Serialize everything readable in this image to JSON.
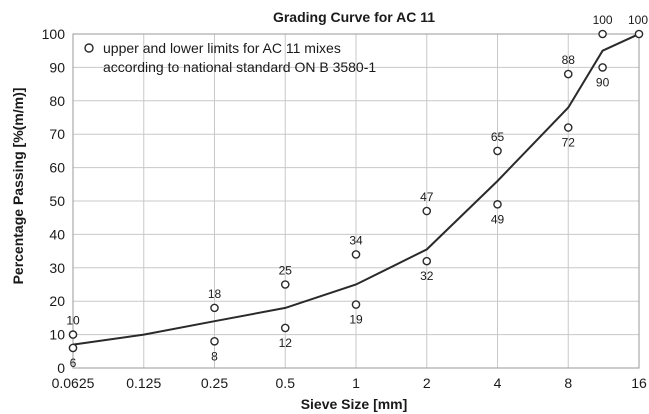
{
  "chart_data": {
    "type": "line",
    "title": "Grading Curve for AC 11",
    "xlabel": "Sieve Size [mm]",
    "ylabel": "Percentage Passing [%(m/m)]",
    "x_scale": "log2",
    "x_ticks": [
      0.0625,
      0.125,
      0.25,
      0.5,
      1,
      2,
      4,
      8,
      16
    ],
    "x_tick_labels": [
      "0.0625",
      "0.125",
      "0.25",
      "0.5",
      "1",
      "2",
      "4",
      "8",
      "16"
    ],
    "ylim": [
      0,
      100
    ],
    "y_ticks": [
      0,
      10,
      20,
      30,
      40,
      50,
      60,
      70,
      80,
      90,
      100
    ],
    "y_tick_labels": [
      "0",
      "10",
      "20",
      "30",
      "40",
      "50",
      "60",
      "70",
      "80",
      "90",
      "100"
    ],
    "grid": true,
    "legend_text": [
      "upper and lower limits for AC 11 mixes",
      "according to national standard ON B 3580-1"
    ],
    "legend_position": "top-left",
    "grading_curve": {
      "x": [
        0.0625,
        0.125,
        0.25,
        0.5,
        1,
        2,
        4,
        8,
        11.2,
        16
      ],
      "y": [
        7,
        10,
        14,
        18,
        25,
        35.5,
        56,
        78,
        95,
        100
      ]
    },
    "upper_limits": [
      {
        "x": 0.0625,
        "y": 10,
        "label": "10"
      },
      {
        "x": 0.25,
        "y": 18,
        "label": "18"
      },
      {
        "x": 0.5,
        "y": 25,
        "label": "25"
      },
      {
        "x": 1,
        "y": 34,
        "label": "34"
      },
      {
        "x": 2,
        "y": 47,
        "label": "47"
      },
      {
        "x": 4,
        "y": 65,
        "label": "65"
      },
      {
        "x": 8,
        "y": 88,
        "label": "88"
      },
      {
        "x": 11.2,
        "y": 100,
        "label": "100"
      },
      {
        "x": 16,
        "y": 100,
        "label": "100"
      }
    ],
    "lower_limits": [
      {
        "x": 0.0625,
        "y": 6,
        "label": "6"
      },
      {
        "x": 0.25,
        "y": 8,
        "label": "8"
      },
      {
        "x": 0.5,
        "y": 12,
        "label": "12"
      },
      {
        "x": 1,
        "y": 19,
        "label": "19"
      },
      {
        "x": 2,
        "y": 32,
        "label": "32"
      },
      {
        "x": 4,
        "y": 49,
        "label": "49"
      },
      {
        "x": 8,
        "y": 72,
        "label": "72"
      },
      {
        "x": 11.2,
        "y": 90,
        "label": "90"
      }
    ]
  }
}
